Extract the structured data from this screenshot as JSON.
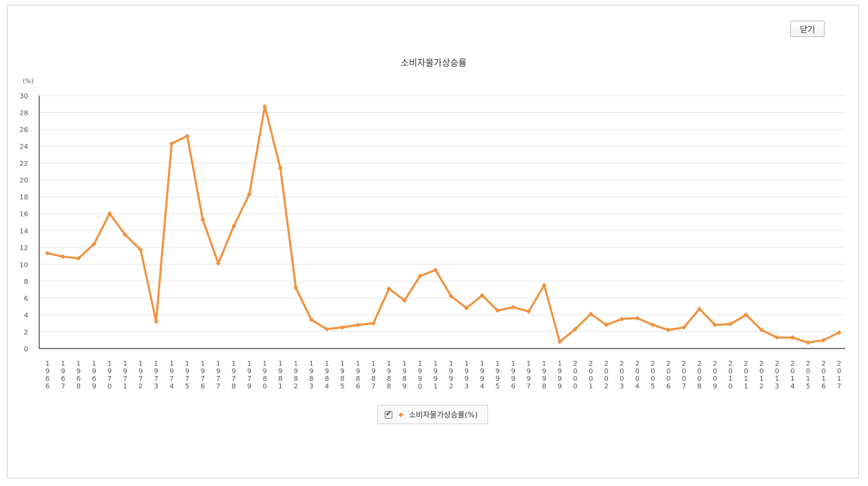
{
  "close_button": "닫기",
  "colors": {
    "series": "#F0913D",
    "axis": "#000000",
    "grid": "#e6e6e6",
    "text": "#555555"
  },
  "legend": {
    "label": "소비자물가상승률(%)",
    "checked": true,
    "check_glyph": "✔"
  },
  "chart_data": {
    "type": "line",
    "title": "소비자물가상승률",
    "ylabel": "(%)",
    "xlabel": "",
    "ylim": [
      0,
      30
    ],
    "yticks": [
      0,
      2,
      4,
      6,
      8,
      10,
      12,
      14,
      16,
      18,
      20,
      22,
      24,
      26,
      28,
      30
    ],
    "grid": true,
    "legend_position": "bottom-center",
    "x": [
      "1966",
      "1967",
      "1968",
      "1969",
      "1970",
      "1971",
      "1972",
      "1973",
      "1974",
      "1975",
      "1976",
      "1977",
      "1978",
      "1979",
      "1980",
      "1981",
      "1982",
      "1983",
      "1984",
      "1985",
      "1986",
      "1987",
      "1988",
      "1989",
      "1990",
      "1991",
      "1992",
      "1993",
      "1994",
      "1995",
      "1996",
      "1997",
      "1998",
      "1999",
      "2000",
      "2001",
      "2002",
      "2003",
      "2004",
      "2005",
      "2006",
      "2007",
      "2008",
      "2009",
      "2010",
      "2011",
      "2012",
      "2013",
      "2014",
      "2015",
      "2016",
      "2017"
    ],
    "series": [
      {
        "name": "소비자물가상승률(%)",
        "values": [
          11.3,
          10.9,
          10.7,
          12.4,
          16.0,
          13.5,
          11.7,
          3.2,
          24.3,
          25.2,
          15.3,
          10.1,
          14.5,
          18.3,
          28.7,
          21.4,
          7.2,
          3.4,
          2.3,
          2.5,
          2.8,
          3.0,
          7.1,
          5.7,
          8.6,
          9.3,
          6.2,
          4.8,
          6.3,
          4.5,
          4.9,
          4.4,
          7.5,
          0.8,
          2.3,
          4.1,
          2.8,
          3.5,
          3.6,
          2.8,
          2.2,
          2.5,
          4.7,
          2.8,
          2.9,
          4.0,
          2.2,
          1.3,
          1.3,
          0.7,
          1.0,
          1.9
        ]
      }
    ]
  }
}
